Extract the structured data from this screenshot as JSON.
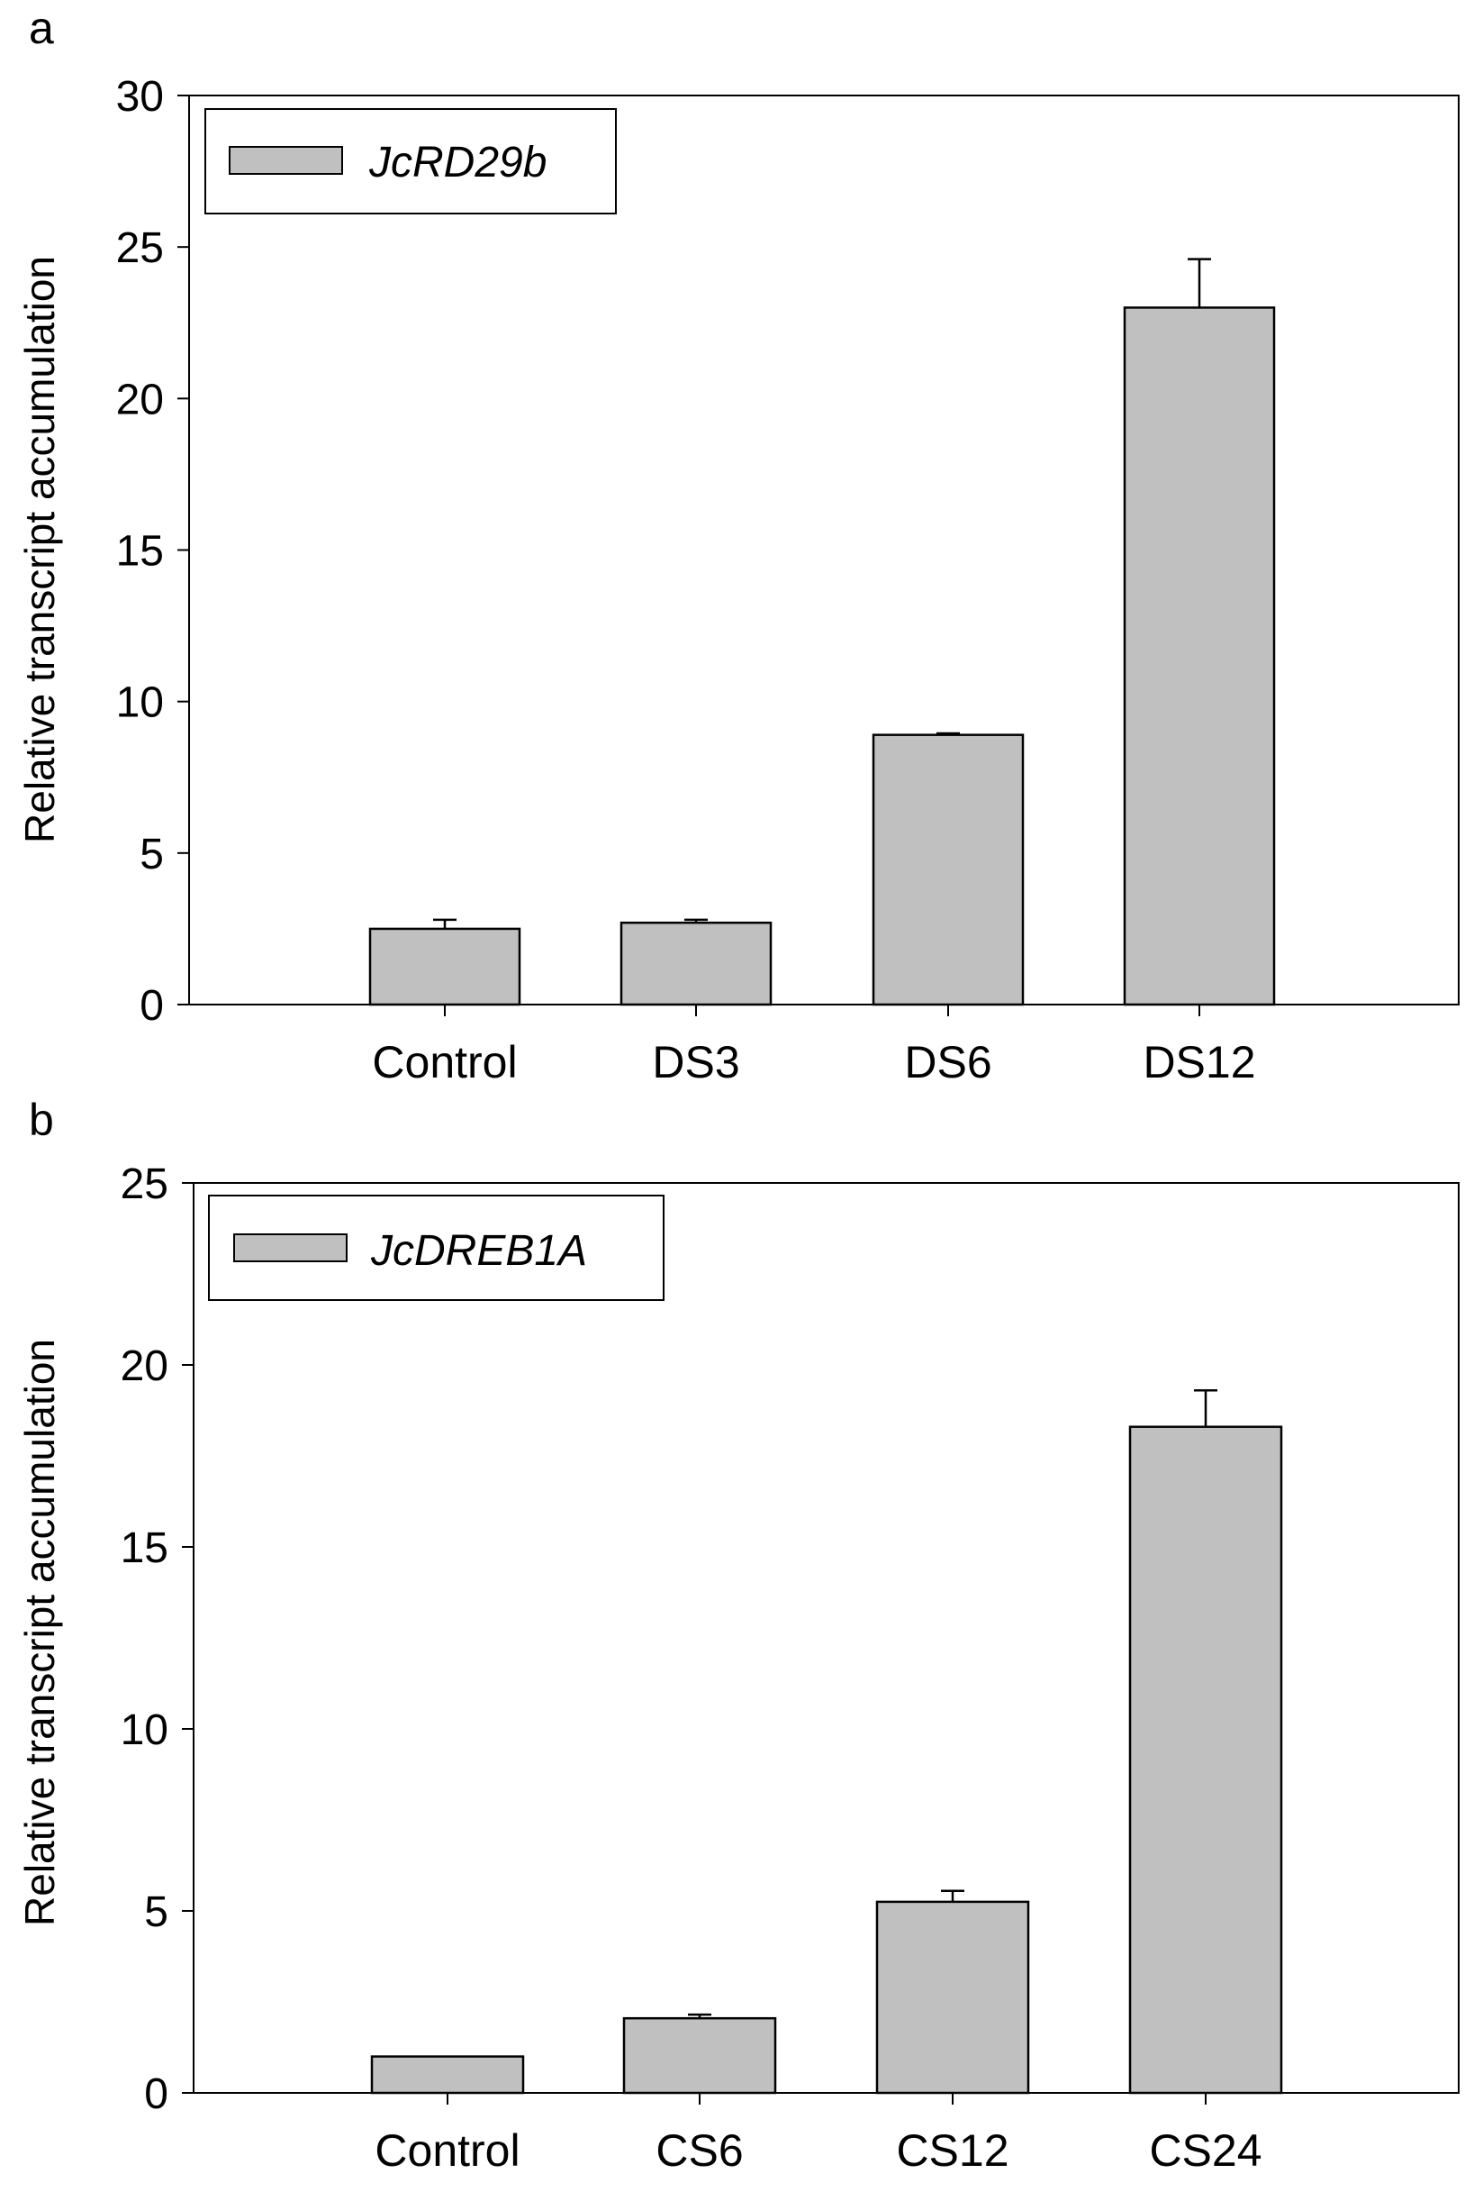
{
  "colors": {
    "bar_fill": "#c0c0c0",
    "stroke": "#000000",
    "background": "#ffffff"
  },
  "chart_data": [
    {
      "panel_label": "a",
      "type": "bar",
      "categories": [
        "Control",
        "DS3",
        "DS6",
        "DS12"
      ],
      "values": [
        2.5,
        2.7,
        8.9,
        23.0
      ],
      "errors": [
        0.3,
        0.1,
        0.05,
        1.6
      ],
      "ylabel": "Relative transcript accumulation",
      "xlabel": "",
      "ylim": [
        0,
        30
      ],
      "yticks": [
        0,
        5,
        10,
        15,
        20,
        25,
        30
      ],
      "legend": {
        "label": "JcRD29b",
        "position": "top-left"
      },
      "grid": false
    },
    {
      "panel_label": "b",
      "type": "bar",
      "categories": [
        "Control",
        "CS6",
        "CS12",
        "CS24"
      ],
      "values": [
        1.0,
        2.05,
        5.25,
        18.3
      ],
      "errors": [
        0.0,
        0.1,
        0.3,
        1.0
      ],
      "ylabel": "Relative transcript accumulation",
      "xlabel": "",
      "ylim": [
        0,
        25
      ],
      "yticks": [
        0,
        5,
        10,
        15,
        20,
        25
      ],
      "legend": {
        "label": "JcDREB1A",
        "position": "top-left"
      },
      "grid": false
    }
  ]
}
